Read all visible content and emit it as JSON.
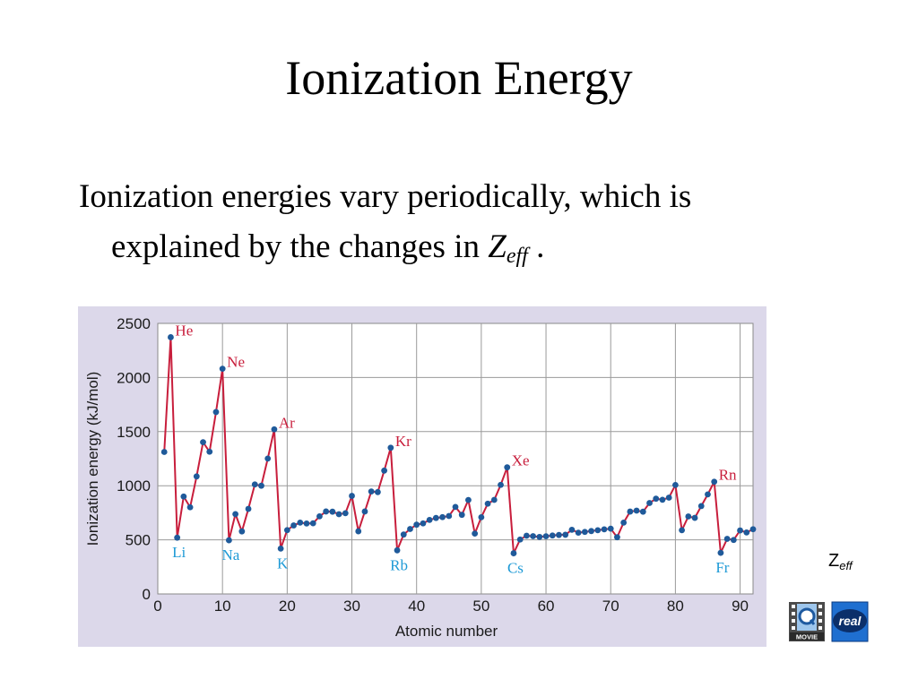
{
  "slide": {
    "title": "Ionization Energy",
    "bullet": {
      "line1": "Ionization energies vary periodically, which is",
      "line2_prefix": "explained by the changes in ",
      "z_symbol": "Z",
      "z_subscript": "eff",
      "line2_suffix": " ."
    },
    "link": {
      "symbol": "Z",
      "subscript": "eff"
    },
    "icons": {
      "movie": {
        "name": "quicktime-movie-icon",
        "label": "MOVIE"
      },
      "real": {
        "name": "realplayer-icon",
        "label": "real"
      }
    }
  },
  "chart_data": {
    "type": "line",
    "title": "",
    "xlabel": "Atomic number",
    "ylabel": "Ionization energy (kJ/mol)",
    "xlim": [
      0,
      92
    ],
    "ylim": [
      0,
      2500
    ],
    "x_ticks": [
      0,
      10,
      20,
      30,
      40,
      50,
      60,
      70,
      80,
      90
    ],
    "y_ticks": [
      0,
      500,
      1000,
      1500,
      2000,
      2500
    ],
    "grid": true,
    "colors": {
      "background": "#dcd8ea",
      "plot": "#ffffff",
      "line": "#c81e3c",
      "marker": "#1f5a9a",
      "label_peak": "#c81e3c",
      "label_trough": "#1e9ad6"
    },
    "series": [
      {
        "x": [
          1,
          2,
          3,
          4,
          5,
          6,
          7,
          8,
          9,
          10,
          11,
          12,
          13,
          14,
          15,
          16,
          17,
          18,
          19,
          20,
          21,
          22,
          23,
          24,
          25,
          26,
          27,
          28,
          29,
          30,
          31,
          32,
          33,
          34,
          35,
          36,
          37,
          38,
          39,
          40,
          41,
          42,
          43,
          44,
          45,
          46,
          47,
          48,
          49,
          50,
          51,
          52,
          53,
          54,
          55,
          56,
          57,
          58,
          59,
          60,
          61,
          62,
          63,
          64,
          65,
          66,
          67,
          68,
          69,
          70,
          71,
          72,
          73,
          74,
          75,
          76,
          77,
          78,
          79,
          80,
          81,
          82,
          83,
          84,
          85,
          86,
          87,
          88,
          89,
          90,
          91,
          92
        ],
        "values": [
          1312,
          2372,
          520,
          900,
          801,
          1086,
          1402,
          1314,
          1681,
          2081,
          496,
          738,
          578,
          786,
          1012,
          1000,
          1251,
          1521,
          419,
          590,
          633,
          659,
          651,
          653,
          717,
          762,
          760,
          737,
          746,
          906,
          579,
          762,
          947,
          941,
          1140,
          1351,
          403,
          549,
          600,
          640,
          652,
          684,
          702,
          710,
          720,
          804,
          731,
          868,
          558,
          709,
          834,
          869,
          1008,
          1170,
          376,
          503,
          538,
          534,
          527,
          533,
          540,
          545,
          547,
          593,
          566,
          573,
          581,
          589,
          597,
          603,
          524,
          659,
          761,
          770,
          760,
          840,
          880,
          870,
          890,
          1007,
          589,
          716,
          703,
          812,
          920,
          1037,
          380,
          509,
          499,
          587,
          568,
          598
        ]
      }
    ],
    "annotations": [
      {
        "text": "He",
        "x": 2,
        "y": 2372,
        "kind": "peak"
      },
      {
        "text": "Ne",
        "x": 10,
        "y": 2081,
        "kind": "peak"
      },
      {
        "text": "Ar",
        "x": 18,
        "y": 1521,
        "kind": "peak"
      },
      {
        "text": "Kr",
        "x": 36,
        "y": 1351,
        "kind": "peak"
      },
      {
        "text": "Xe",
        "x": 54,
        "y": 1170,
        "kind": "peak"
      },
      {
        "text": "Rn",
        "x": 86,
        "y": 1037,
        "kind": "peak"
      },
      {
        "text": "Li",
        "x": 3,
        "y": 520,
        "kind": "trough"
      },
      {
        "text": "Na",
        "x": 11,
        "y": 496,
        "kind": "trough"
      },
      {
        "text": "K",
        "x": 19,
        "y": 419,
        "kind": "trough"
      },
      {
        "text": "Rb",
        "x": 37,
        "y": 403,
        "kind": "trough"
      },
      {
        "text": "Cs",
        "x": 55,
        "y": 376,
        "kind": "trough"
      },
      {
        "text": "Fr",
        "x": 87,
        "y": 380,
        "kind": "trough"
      }
    ]
  }
}
